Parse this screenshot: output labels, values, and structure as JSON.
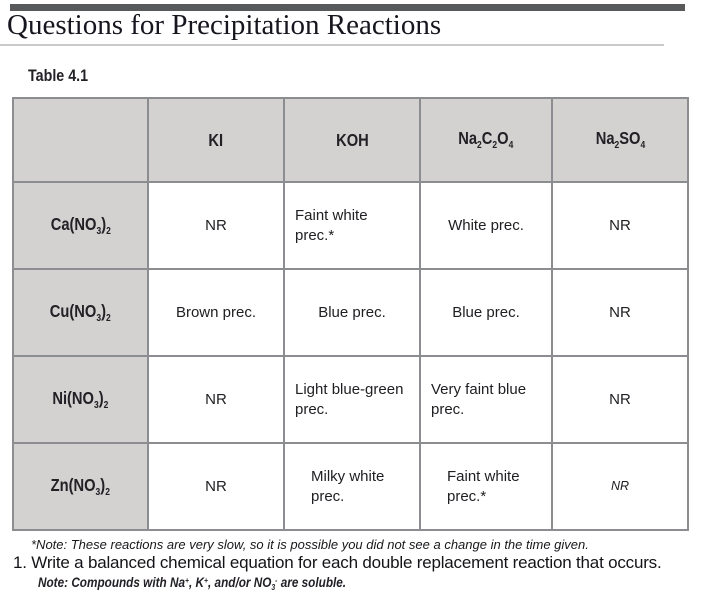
{
  "page": {
    "title": "Questions for Precipitation Reactions",
    "table_caption": "Table 4.1"
  },
  "table": {
    "col_headers": {
      "corner": "",
      "ki": "KI",
      "koh": "KOH",
      "na2c2o4": "Na_2C_2O_4",
      "na2so4": "Na_2SO_4"
    },
    "rows": [
      {
        "label": "Ca(NO_3)_2",
        "cells": [
          "NR",
          "Faint white\nprec.*",
          "White prec.",
          "NR"
        ]
      },
      {
        "label": "Cu(NO_3)_2",
        "cells": [
          "Brown prec.",
          "Blue prec.",
          "Blue prec.",
          "NR"
        ]
      },
      {
        "label": "Ni(NO_3)_2",
        "cells": [
          "NR",
          "Light blue-green\nprec.",
          "Very faint blue\nprec.",
          "NR"
        ]
      },
      {
        "label": "Zn(NO_3)_2",
        "cells": [
          "NR",
          "Milky white\nprec.",
          "Faint white\nprec.*",
          "NR"
        ]
      }
    ]
  },
  "notes": {
    "footnote": "*Note: These reactions are very slow, so it is possible you did not see a change in the time given.",
    "question": "1. Write a balanced chemical equation for each double replacement reaction that occurs.",
    "solubility_note": "Note: Compounds with Na^+, K^+, and/or NO_3^- are soluble."
  },
  "colors": {
    "cell_fill": "#d3d2d0",
    "border": "#8b8d90",
    "top_bar": "#58595b",
    "text": "#1f1f23"
  }
}
